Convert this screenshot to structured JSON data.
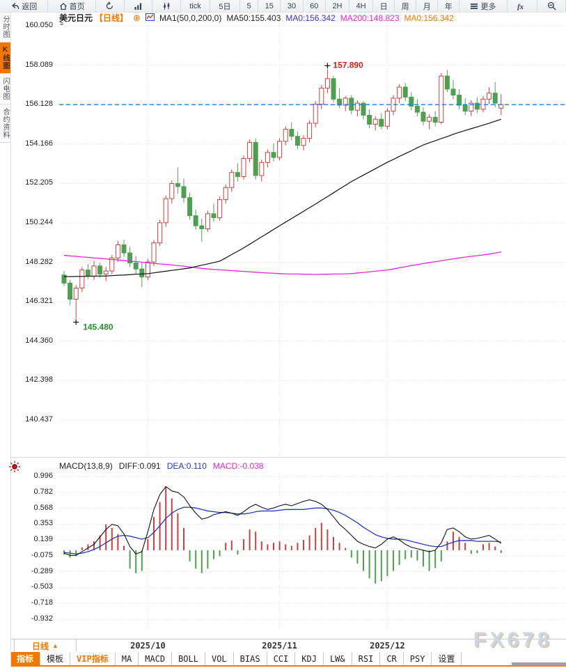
{
  "toolbar": {
    "items": [
      {
        "name": "back-button",
        "icon": "back",
        "label": "返回",
        "w": 1.6
      },
      {
        "name": "home-button",
        "icon": "home",
        "label": "首页",
        "w": 1.6
      },
      {
        "name": "refresh-button",
        "icon": "refresh",
        "label": "",
        "w": 1.4
      },
      {
        "name": "bar-chart-button",
        "icon": "bar-chart",
        "label": "",
        "w": 1.4
      },
      {
        "name": "kline-chart-button",
        "icon": "kline",
        "label": "",
        "w": 1.4
      },
      {
        "name": "interval-tick-button",
        "icon": "",
        "label": "tick",
        "w": 1.3
      },
      {
        "name": "interval-5day-button",
        "icon": "",
        "label": "5日",
        "w": 1.3
      },
      {
        "name": "interval-5-button",
        "icon": "",
        "label": "5",
        "w": 1
      },
      {
        "name": "interval-15-button",
        "icon": "",
        "label": "15",
        "w": 1
      },
      {
        "name": "interval-30-button",
        "icon": "",
        "label": "30",
        "w": 1
      },
      {
        "name": "interval-60-button",
        "icon": "",
        "label": "60",
        "w": 1
      },
      {
        "name": "interval-2h-button",
        "icon": "",
        "label": "2H",
        "w": 1
      },
      {
        "name": "interval-4h-button",
        "icon": "",
        "label": "4H",
        "w": 1
      },
      {
        "name": "interval-day-button",
        "icon": "",
        "label": "日",
        "w": 1
      },
      {
        "name": "interval-week-button",
        "icon": "",
        "label": "周",
        "w": 1
      },
      {
        "name": "interval-month-button",
        "icon": "",
        "label": "月",
        "w": 1
      },
      {
        "name": "interval-year-button",
        "icon": "",
        "label": "年",
        "w": 1
      },
      {
        "name": "more-button",
        "icon": "menu",
        "label": "更多",
        "w": 1.6
      },
      {
        "name": "fx-button",
        "icon": "fx",
        "label": "",
        "w": 1.4
      },
      {
        "name": "zoom-out-button",
        "icon": "zoom-out",
        "label": "",
        "w": 1.4
      }
    ]
  },
  "sidebar": {
    "items": [
      {
        "name": "sidebar-tab-time-chart",
        "label": "分时图",
        "active": false
      },
      {
        "name": "sidebar-tab-kline-chart",
        "label": "K线图",
        "active": true
      },
      {
        "name": "sidebar-tab-lightning-chart",
        "label": "闪电图",
        "active": false
      },
      {
        "name": "sidebar-tab-contract-info",
        "label": "合约资料",
        "active": false
      }
    ]
  },
  "legend": {
    "symbol": "美元日元",
    "period": "【日线】",
    "add_glyph": "⊕",
    "ma_settings": "MA1(50,0,200,0)",
    "ma50": "MA50:155.403",
    "ma0_blue": "MA0:156.342",
    "ma200": "MA200:148.823",
    "ma0_orange": "MA0:156.342",
    "plot_menu_glyph": "≡"
  },
  "macd_legend": {
    "title": "MACD(13,8,9)",
    "diff": "DIFF:0.091",
    "dea": "DEA:0.110",
    "macd": "MACD:-0.038"
  },
  "xaxis": {
    "period_label": "日线",
    "period_arrow": "▲"
  },
  "bottom_tabs": [
    {
      "name": "tab-indicators",
      "label": "指标",
      "active": true,
      "vip": false
    },
    {
      "name": "tab-templates",
      "label": "模板",
      "active": false,
      "vip": false
    },
    {
      "name": "tab-vip-indicators",
      "label": "VIP指标",
      "active": false,
      "vip": true
    },
    {
      "name": "tab-ma",
      "label": "MA",
      "active": false,
      "vip": false
    },
    {
      "name": "tab-macd",
      "label": "MACD",
      "active": false,
      "vip": false
    },
    {
      "name": "tab-boll",
      "label": "BOLL",
      "active": false,
      "vip": false
    },
    {
      "name": "tab-vol",
      "label": "VOL",
      "active": false,
      "vip": false
    },
    {
      "name": "tab-bias",
      "label": "BIAS",
      "active": false,
      "vip": false
    },
    {
      "name": "tab-cci",
      "label": "CCI",
      "active": false,
      "vip": false
    },
    {
      "name": "tab-kdj",
      "label": "KDJ",
      "active": false,
      "vip": false
    },
    {
      "name": "tab-lw",
      "label": "LW&",
      "active": false,
      "vip": false
    },
    {
      "name": "tab-rsi",
      "label": "RSI",
      "active": false,
      "vip": false
    },
    {
      "name": "tab-cr",
      "label": "CR",
      "active": false,
      "vip": false
    },
    {
      "name": "tab-psy",
      "label": "PSY",
      "active": false,
      "vip": false
    },
    {
      "name": "tab-settings",
      "label": "设置",
      "active": false,
      "vip": false
    }
  ],
  "watermark": "FX678",
  "colors": {
    "accent_orange": "#f07800",
    "up_red": "#c9413e",
    "down_green": "#4f9e52",
    "ma50": "#111111",
    "ma200": "#e623d8",
    "diff": "#111111",
    "dea": "#2238b8",
    "price_line": "#1d7ce0",
    "grid": "#dcdcdc",
    "high_label": "#cc2222",
    "low_label": "#2e8b2e",
    "hist_up": "#c9413e",
    "hist_down": "#4f9e52"
  },
  "chart_data": [
    {
      "type": "candlestick",
      "title": "美元日元【日线】",
      "ylabel": "price",
      "ylim": [
        139.5,
        160.5
      ],
      "grid": true,
      "y_ticks": [
        "160.050",
        "158.089",
        "156.128",
        "154.166",
        "152.205",
        "150.244",
        "148.282",
        "146.321",
        "144.360",
        "142.398",
        "140.437"
      ],
      "x_month_ticks": [
        {
          "label": "2025/10",
          "index": 14
        },
        {
          "label": "2025/11",
          "index": 36
        },
        {
          "label": "2025/12",
          "index": 54
        }
      ],
      "last_price": 156.128,
      "annotations": {
        "high": {
          "index": 44,
          "price": 157.89,
          "label": "157.890"
        },
        "low": {
          "index": 2,
          "price": 145.48,
          "label": "145.480"
        }
      },
      "candles": [
        [
          147.65,
          147.85,
          147.1,
          147.25
        ],
        [
          147.25,
          147.4,
          146.15,
          146.45
        ],
        [
          146.45,
          147.15,
          145.48,
          147.0
        ],
        [
          147.0,
          148.05,
          146.8,
          147.9
        ],
        [
          147.9,
          148.2,
          147.45,
          147.6
        ],
        [
          147.6,
          148.35,
          147.4,
          148.1
        ],
        [
          148.1,
          148.25,
          147.5,
          147.7
        ],
        [
          147.7,
          148.05,
          147.35,
          147.85
        ],
        [
          147.85,
          148.65,
          147.7,
          148.5
        ],
        [
          148.5,
          149.35,
          148.3,
          149.15
        ],
        [
          149.15,
          149.4,
          148.55,
          148.75
        ],
        [
          148.75,
          149.05,
          148.05,
          148.25
        ],
        [
          148.25,
          148.6,
          147.7,
          147.95
        ],
        [
          147.95,
          148.3,
          147.05,
          147.55
        ],
        [
          147.55,
          148.45,
          147.4,
          148.3
        ],
        [
          148.3,
          149.4,
          148.1,
          149.25
        ],
        [
          149.25,
          150.4,
          149.1,
          150.25
        ],
        [
          150.25,
          151.6,
          150.05,
          151.45
        ],
        [
          151.45,
          152.35,
          151.2,
          152.2
        ],
        [
          152.2,
          153.0,
          151.7,
          152.05
        ],
        [
          152.05,
          152.45,
          151.25,
          151.5
        ],
        [
          151.5,
          151.75,
          150.4,
          150.6
        ],
        [
          150.6,
          150.9,
          149.9,
          150.1
        ],
        [
          150.1,
          150.45,
          149.3,
          149.95
        ],
        [
          149.95,
          150.85,
          149.8,
          150.7
        ],
        [
          150.7,
          151.2,
          150.3,
          150.5
        ],
        [
          150.5,
          151.55,
          150.35,
          151.4
        ],
        [
          151.4,
          152.15,
          151.2,
          152.0
        ],
        [
          152.0,
          152.9,
          151.8,
          152.75
        ],
        [
          152.75,
          153.2,
          152.3,
          152.55
        ],
        [
          152.55,
          153.6,
          152.4,
          153.45
        ],
        [
          153.45,
          154.4,
          153.25,
          154.25
        ],
        [
          154.25,
          154.45,
          152.4,
          152.6
        ],
        [
          152.6,
          153.4,
          152.3,
          153.25
        ],
        [
          153.25,
          153.9,
          153.0,
          153.75
        ],
        [
          153.75,
          154.2,
          153.3,
          153.5
        ],
        [
          153.5,
          154.45,
          153.35,
          154.3
        ],
        [
          154.3,
          155.05,
          154.1,
          154.9
        ],
        [
          154.9,
          155.25,
          154.35,
          154.55
        ],
        [
          154.55,
          154.8,
          153.9,
          154.1
        ],
        [
          154.1,
          154.6,
          153.85,
          154.45
        ],
        [
          154.45,
          155.35,
          154.25,
          155.2
        ],
        [
          155.2,
          156.3,
          155.0,
          156.15
        ],
        [
          156.15,
          157.1,
          155.9,
          156.95
        ],
        [
          156.95,
          157.89,
          156.7,
          157.42
        ],
        [
          157.42,
          157.55,
          156.25,
          156.4
        ],
        [
          156.4,
          156.95,
          155.95,
          156.1
        ],
        [
          156.1,
          156.55,
          155.8,
          156.45
        ],
        [
          156.45,
          156.6,
          155.65,
          155.85
        ],
        [
          155.85,
          156.35,
          155.55,
          156.2
        ],
        [
          156.2,
          156.3,
          155.4,
          155.6
        ],
        [
          155.6,
          155.9,
          154.95,
          155.15
        ],
        [
          155.15,
          155.55,
          154.85,
          155.4
        ],
        [
          155.4,
          155.7,
          154.9,
          155.05
        ],
        [
          155.05,
          155.95,
          154.9,
          155.8
        ],
        [
          155.8,
          156.6,
          155.6,
          156.45
        ],
        [
          156.45,
          157.15,
          156.2,
          157.0
        ],
        [
          157.0,
          157.2,
          156.3,
          156.5
        ],
        [
          156.5,
          156.75,
          155.85,
          156.05
        ],
        [
          156.05,
          156.4,
          155.55,
          155.75
        ],
        [
          155.75,
          156.0,
          155.1,
          155.3
        ],
        [
          155.3,
          155.65,
          154.9,
          155.5
        ],
        [
          155.5,
          155.8,
          155.05,
          155.25
        ],
        [
          155.25,
          157.7,
          155.15,
          157.55
        ],
        [
          157.55,
          157.85,
          156.75,
          156.9
        ],
        [
          156.9,
          157.35,
          156.4,
          156.6
        ],
        [
          156.6,
          156.9,
          155.9,
          156.1
        ],
        [
          156.1,
          156.45,
          155.6,
          155.8
        ],
        [
          155.8,
          156.35,
          155.55,
          156.2
        ],
        [
          156.2,
          156.5,
          155.7,
          155.9
        ],
        [
          155.9,
          156.55,
          155.75,
          156.4
        ],
        [
          156.4,
          157.0,
          156.15,
          156.7
        ],
        [
          156.7,
          157.25,
          156.0,
          156.2
        ],
        [
          155.95,
          156.65,
          155.6,
          156.13
        ]
      ],
      "series": {
        "ma50": [
          147.57,
          147.57,
          147.58,
          147.58,
          147.59,
          147.59,
          147.6,
          147.6,
          147.62,
          147.64,
          147.65,
          147.67,
          147.69,
          147.7,
          147.72,
          147.76,
          147.8,
          147.84,
          147.88,
          147.92,
          147.96,
          148.0,
          148.07,
          148.14,
          148.2,
          148.27,
          148.34,
          148.5,
          148.67,
          148.83,
          149.0,
          149.18,
          149.37,
          149.55,
          149.73,
          149.92,
          150.1,
          150.28,
          150.46,
          150.64,
          150.82,
          151.0,
          151.18,
          151.37,
          151.55,
          151.74,
          151.93,
          152.11,
          152.3,
          152.46,
          152.62,
          152.78,
          152.94,
          153.1,
          153.26,
          153.4,
          153.55,
          153.69,
          153.83,
          153.98,
          154.12,
          154.23,
          154.33,
          154.44,
          154.54,
          154.65,
          154.75,
          154.84,
          154.93,
          155.02,
          155.11,
          155.2,
          155.3,
          155.4
        ],
        "ma200": [
          148.63,
          148.6,
          148.58,
          148.55,
          148.53,
          148.5,
          148.48,
          148.45,
          148.42,
          148.4,
          148.37,
          148.34,
          148.32,
          148.29,
          148.26,
          148.23,
          148.2,
          148.18,
          148.15,
          148.12,
          148.09,
          148.05,
          148.02,
          147.98,
          147.95,
          147.93,
          147.91,
          147.89,
          147.87,
          147.85,
          147.83,
          147.81,
          147.79,
          147.77,
          147.75,
          147.74,
          147.72,
          147.71,
          147.7,
          147.7,
          147.69,
          147.69,
          147.68,
          147.69,
          147.69,
          147.7,
          147.7,
          147.71,
          147.72,
          147.75,
          147.78,
          147.81,
          147.84,
          147.87,
          147.9,
          147.95,
          148.01,
          148.06,
          148.12,
          148.17,
          148.22,
          148.27,
          148.31,
          148.36,
          148.41,
          148.45,
          148.5,
          148.54,
          148.58,
          148.61,
          148.65,
          148.69,
          148.74,
          148.8
        ]
      }
    },
    {
      "type": "macd",
      "title": "MACD(13,8,9)",
      "grid": true,
      "y_ticks": [
        "0.996",
        "0.782",
        "0.568",
        "0.353",
        "0.139",
        "-0.075",
        "-0.289",
        "-0.503",
        "-0.718",
        "-0.932"
      ],
      "diff": [
        -0.04,
        -0.07,
        -0.07,
        -0.02,
        0.03,
        0.08,
        0.18,
        0.28,
        0.35,
        0.33,
        0.22,
        0.05,
        -0.05,
        -0.02,
        0.25,
        0.55,
        0.75,
        0.86,
        0.8,
        0.78,
        0.72,
        0.6,
        0.5,
        0.42,
        0.44,
        0.48,
        0.5,
        0.52,
        0.5,
        0.47,
        0.52,
        0.58,
        0.62,
        0.58,
        0.55,
        0.57,
        0.6,
        0.62,
        0.6,
        0.63,
        0.66,
        0.68,
        0.66,
        0.62,
        0.55,
        0.45,
        0.35,
        0.28,
        0.2,
        0.12,
        0.08,
        0.05,
        0.03,
        0.08,
        0.15,
        0.18,
        0.14,
        0.08,
        0.04,
        0.02,
        0.0,
        -0.02,
        0.0,
        0.1,
        0.28,
        0.3,
        0.25,
        0.18,
        0.15,
        0.16,
        0.18,
        0.2,
        0.15,
        0.091
      ],
      "dea": [
        -0.03,
        -0.04,
        -0.05,
        -0.04,
        -0.02,
        0.01,
        0.05,
        0.1,
        0.15,
        0.19,
        0.2,
        0.19,
        0.17,
        0.15,
        0.17,
        0.24,
        0.33,
        0.43,
        0.5,
        0.55,
        0.58,
        0.58,
        0.57,
        0.55,
        0.53,
        0.52,
        0.51,
        0.51,
        0.5,
        0.49,
        0.49,
        0.5,
        0.52,
        0.53,
        0.53,
        0.53,
        0.54,
        0.55,
        0.55,
        0.55,
        0.55,
        0.56,
        0.57,
        0.57,
        0.56,
        0.54,
        0.51,
        0.47,
        0.42,
        0.37,
        0.31,
        0.26,
        0.21,
        0.18,
        0.16,
        0.15,
        0.15,
        0.14,
        0.12,
        0.1,
        0.08,
        0.06,
        0.05,
        0.05,
        0.08,
        0.11,
        0.13,
        0.13,
        0.13,
        0.12,
        0.12,
        0.12,
        0.12,
        0.11
      ],
      "hist": [
        -0.06,
        -0.1,
        -0.08,
        0.04,
        0.08,
        0.12,
        0.2,
        0.35,
        0.3,
        0.22,
        0.06,
        -0.25,
        -0.31,
        -0.28,
        0.15,
        0.45,
        0.65,
        0.86,
        0.7,
        0.5,
        0.3,
        -0.15,
        -0.25,
        -0.31,
        -0.25,
        -0.12,
        -0.08,
        0.1,
        0.13,
        -0.06,
        0.15,
        0.28,
        0.25,
        0.12,
        0.08,
        0.1,
        0.12,
        0.08,
        0.06,
        0.1,
        0.14,
        0.2,
        0.3,
        0.37,
        0.28,
        0.18,
        0.1,
        0.03,
        -0.1,
        -0.18,
        -0.28,
        -0.38,
        -0.45,
        -0.42,
        -0.35,
        -0.28,
        -0.2,
        -0.12,
        -0.1,
        -0.14,
        -0.22,
        -0.28,
        -0.24,
        -0.15,
        0.12,
        0.25,
        0.18,
        0.1,
        -0.05,
        -0.04,
        0.08,
        0.1,
        0.05,
        -0.038
      ]
    }
  ]
}
